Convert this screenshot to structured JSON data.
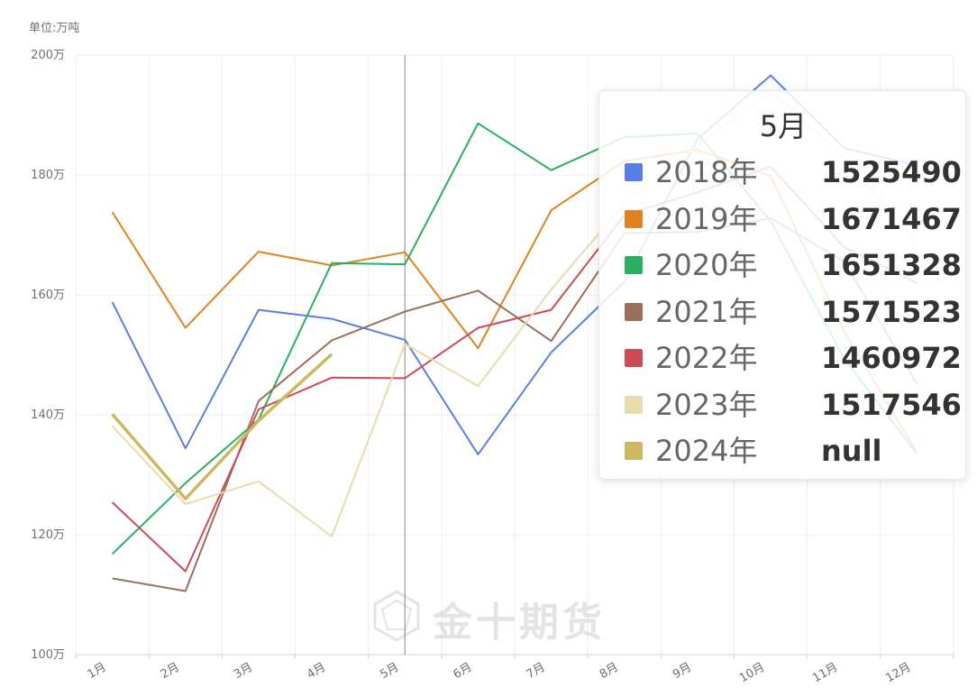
{
  "chart_data": {
    "type": "line",
    "unit_label": "单位:万吨",
    "categories": [
      "1月",
      "2月",
      "3月",
      "4月",
      "5月",
      "6月",
      "7月",
      "8月",
      "9月",
      "10月",
      "11月",
      "12月"
    ],
    "yticks": [
      "100万",
      "120万",
      "140万",
      "160万",
      "180万",
      "200万"
    ],
    "ylim": [
      100,
      200
    ],
    "grid": true,
    "series": [
      {
        "name": "2018年",
        "color": "#5b7ee5",
        "values": [
          158.8,
          134.4,
          157.5,
          156.0,
          152.5,
          133.4,
          150.4,
          162.2,
          186.0,
          196.6,
          184.5,
          181.6
        ]
      },
      {
        "name": "2019年",
        "color": "#e0821d",
        "values": [
          173.8,
          154.5,
          167.2,
          164.9,
          167.1,
          151.1,
          174.1,
          182.3,
          184.2,
          179.8,
          154.0,
          133.7
        ]
      },
      {
        "name": "2020年",
        "color": "#2aaf60",
        "values": [
          116.8,
          128.6,
          139.2,
          165.3,
          165.1,
          188.6,
          180.8,
          186.3,
          186.9,
          172.3,
          149.4,
          133.5
        ]
      },
      {
        "name": "2021年",
        "color": "#98705b",
        "values": [
          112.7,
          110.6,
          142.3,
          152.4,
          157.2,
          160.7,
          152.3,
          170.3,
          170.5,
          172.8,
          165.6,
          145.1
        ]
      },
      {
        "name": "2022年",
        "color": "#cc4b55",
        "values": [
          125.4,
          113.9,
          140.9,
          146.2,
          146.1,
          154.5,
          157.5,
          173.3,
          177.1,
          181.4,
          168.0,
          162.0
        ]
      },
      {
        "name": "2023年",
        "color": "#e8dcae",
        "values": [
          138.1,
          125.1,
          128.9,
          119.7,
          151.8,
          144.8,
          160.9,
          175.2,
          184.9,
          194.0,
          183.0,
          168.8
        ]
      },
      {
        "name": "2024年",
        "color": "#cdb862",
        "values": [
          140.1,
          126.0,
          139.0,
          150.1,
          null,
          null,
          null,
          null,
          null,
          null,
          null,
          null
        ]
      }
    ],
    "pointer_category": "5月"
  },
  "tooltip": {
    "title": "5月",
    "rows": [
      {
        "name": "2018年",
        "value": "1525490",
        "color": "#5b7ee5"
      },
      {
        "name": "2019年",
        "value": "1671467",
        "color": "#e0821d"
      },
      {
        "name": "2020年",
        "value": "1651328",
        "color": "#2aaf60"
      },
      {
        "name": "2021年",
        "value": "1571523",
        "color": "#98705b"
      },
      {
        "name": "2022年",
        "value": "1460972",
        "color": "#cc4b55"
      },
      {
        "name": "2023年",
        "value": "1517546",
        "color": "#e8dcae"
      },
      {
        "name": "2024年",
        "value": "null",
        "color": "#cdb862"
      }
    ]
  },
  "watermark": "金十期货"
}
